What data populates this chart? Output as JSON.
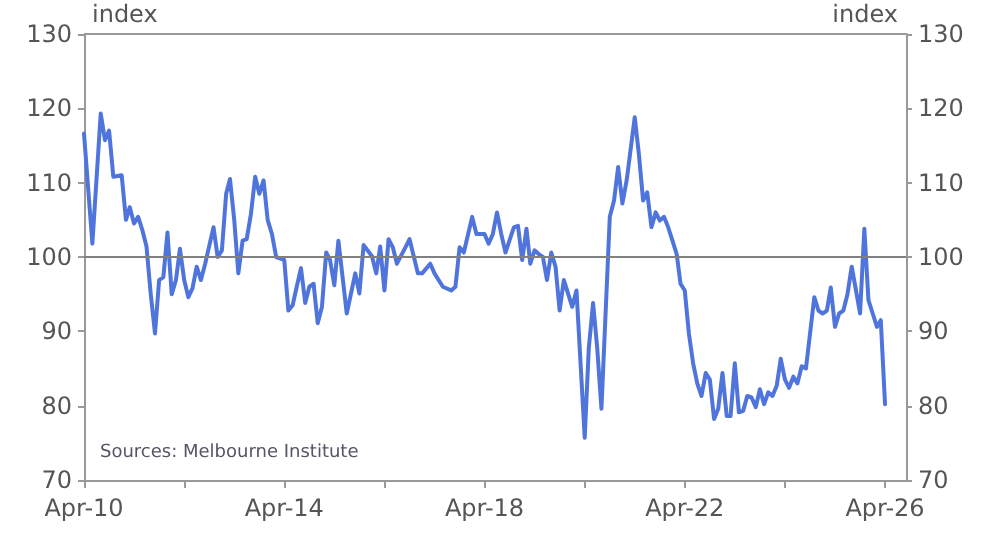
{
  "chart_data": {
    "type": "line",
    "ylabel": "index",
    "y2label": "index",
    "annotations": [
      "Sources: Melbourne Institute"
    ],
    "x": [
      "2010-04",
      "2010-06",
      "2010-08",
      "2010-09",
      "2010-10",
      "2010-11",
      "2011-01",
      "2011-02",
      "2011-03",
      "2011-04",
      "2011-05",
      "2011-06",
      "2011-07",
      "2011-08",
      "2011-09",
      "2011-10",
      "2011-11",
      "2011-12",
      "2012-01",
      "2012-02",
      "2012-03",
      "2012-04",
      "2012-05",
      "2012-06",
      "2012-07",
      "2012-08",
      "2012-09",
      "2012-11",
      "2012-12",
      "2013-01",
      "2013-02",
      "2013-03",
      "2013-04",
      "2013-05",
      "2013-06",
      "2013-07",
      "2013-08",
      "2013-09",
      "2013-10",
      "2013-11",
      "2013-12",
      "2014-01",
      "2014-02",
      "2014-04",
      "2014-05",
      "2014-06",
      "2014-07",
      "2014-08",
      "2014-09",
      "2014-10",
      "2014-11",
      "2014-12",
      "2015-01",
      "2015-02",
      "2015-03",
      "2015-04",
      "2015-05",
      "2015-07",
      "2015-09",
      "2015-10",
      "2015-11",
      "2016-01",
      "2016-02",
      "2016-03",
      "2016-04",
      "2016-05",
      "2016-06",
      "2016-07",
      "2016-09",
      "2016-10",
      "2016-12",
      "2017-01",
      "2017-03",
      "2017-04",
      "2017-06",
      "2017-08",
      "2017-09",
      "2017-10",
      "2017-11",
      "2018-01",
      "2018-02",
      "2018-04",
      "2018-05",
      "2018-06",
      "2018-07",
      "2018-08",
      "2018-09",
      "2018-11",
      "2018-12",
      "2019-01",
      "2019-02",
      "2019-03",
      "2019-04",
      "2019-05",
      "2019-06",
      "2019-07",
      "2019-08",
      "2019-09",
      "2019-10",
      "2019-11",
      "2019-12",
      "2020-01",
      "2020-02",
      "2020-04",
      "2020-05",
      "2020-06",
      "2020-07",
      "2020-08",
      "2020-10",
      "2020-11",
      "2020-12",
      "2021-01",
      "2021-02",
      "2021-04",
      "2021-05",
      "2021-06",
      "2021-07",
      "2021-08",
      "2021-09",
      "2021-10",
      "2021-11",
      "2021-12",
      "2022-01",
      "2022-02",
      "2022-03",
      "2022-04",
      "2022-05",
      "2022-06",
      "2022-07",
      "2022-08",
      "2022-09",
      "2022-10",
      "2022-11",
      "2022-12",
      "2023-01",
      "2023-02",
      "2023-03",
      "2023-04",
      "2023-05",
      "2023-06",
      "2023-07",
      "2023-08",
      "2023-09",
      "2023-10",
      "2023-11",
      "2023-12",
      "2024-01",
      "2024-02",
      "2024-03",
      "2024-04",
      "2024-05",
      "2024-06",
      "2024-07",
      "2024-08",
      "2024-09",
      "2024-10",
      "2024-11",
      "2024-12",
      "2025-01",
      "2025-02",
      "2025-03",
      "2025-04",
      "2025-05",
      "2025-06",
      "2025-07",
      "2025-08",
      "2025-09",
      "2025-10",
      "2025-11",
      "2025-12",
      "2026-01",
      "2026-02",
      "2026-03",
      "2026-04"
    ],
    "series": [
      {
        "color": "#4f74dc",
        "values": [
          116.6,
          101.8,
          119.3,
          115.7,
          117,
          110.8,
          111,
          105,
          106.7,
          104.5,
          105.4,
          103.6,
          101.4,
          95,
          89.7,
          96.9,
          97.3,
          103.3,
          95,
          96.9,
          101.1,
          96.9,
          94.6,
          95.8,
          98.7,
          96.9,
          99.1,
          104,
          100,
          100.9,
          108.5,
          110.5,
          105,
          97.8,
          102.2,
          102.4,
          105.8,
          110.8,
          108.5,
          110.3,
          105,
          103.1,
          100,
          99.6,
          92.8,
          93.5,
          96,
          98.5,
          93.8,
          96,
          96.4,
          91.1,
          93.3,
          100.6,
          99.6,
          96.2,
          102.2,
          92.4,
          97.8,
          95.1,
          101.6,
          100.1,
          97.8,
          101.4,
          95.5,
          102.4,
          101.3,
          99.1,
          101.3,
          102.4,
          97.8,
          97.8,
          99.1,
          97.8,
          96,
          95.5,
          96,
          101.3,
          100.6,
          105.4,
          103.1,
          103.1,
          101.8,
          103.1,
          106,
          103.1,
          100.6,
          104,
          104.2,
          99.6,
          103.8,
          99.1,
          100.9,
          100.4,
          100,
          96.9,
          100.6,
          98.7,
          92.8,
          96.9,
          95.1,
          93.3,
          95.5,
          75.7,
          87.8,
          93.8,
          87.8,
          79.6,
          105.4,
          107.6,
          112.1,
          107.2,
          110.3,
          118.8,
          113.9,
          107.6,
          108.7,
          104,
          106,
          104.9,
          105.4,
          104,
          102.2,
          100.4,
          96.4,
          95.5,
          89.7,
          85.7,
          83,
          81.3,
          84.4,
          83.5,
          78.2,
          79.6,
          84.4,
          78.6,
          78.6,
          85.7,
          79.1,
          79.3,
          81.3,
          81.1,
          79.8,
          82.2,
          80.2,
          81.8,
          81.3,
          82.7,
          86.3,
          83.5,
          82.4,
          83.9,
          83,
          85.3,
          85,
          89.7,
          94.6,
          92.8,
          92.4,
          92.8,
          95.9,
          90.6,
          92.4,
          92.8,
          95,
          98.7,
          95.5,
          92.4,
          103.8,
          94.2,
          92.4,
          90.6,
          91.5,
          80.2
        ]
      }
    ],
    "xlim": [
      "2010-04",
      "2026-09"
    ],
    "xticks": [
      {
        "value": "2010-04",
        "label": "Apr-10"
      },
      {
        "value": "2012-04",
        "label": null
      },
      {
        "value": "2014-04",
        "label": "Apr-14"
      },
      {
        "value": "2016-04",
        "label": null
      },
      {
        "value": "2018-04",
        "label": "Apr-18"
      },
      {
        "value": "2020-04",
        "label": null
      },
      {
        "value": "2022-04",
        "label": "Apr-22"
      },
      {
        "value": "2024-04",
        "label": null
      },
      {
        "value": "2026-04",
        "label": "Apr-26"
      }
    ],
    "ylim": [
      70,
      130
    ],
    "yticks": [
      70,
      80,
      90,
      100,
      110,
      120,
      130
    ],
    "y2lim": [
      70,
      130
    ],
    "y2ticks": [
      70,
      80,
      90,
      100,
      110,
      120,
      130
    ],
    "ref_lines": [
      {
        "axis": "y",
        "value": 100,
        "color": "#808080"
      }
    ],
    "grid": false,
    "marker": "none",
    "line_style": "solid"
  }
}
